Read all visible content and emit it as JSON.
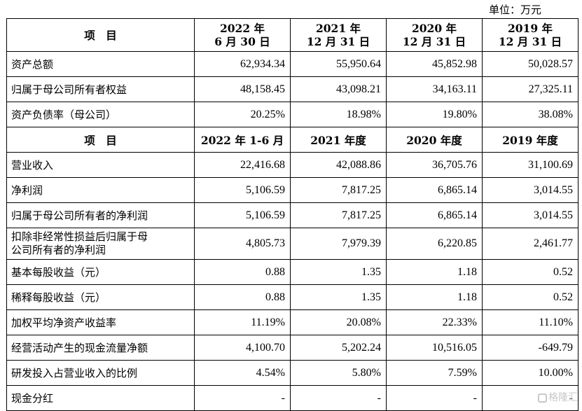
{
  "unit": "单位：万元",
  "table": {
    "header1": {
      "label": "项　目",
      "cols": [
        [
          "2022 年",
          "6 月 30 日"
        ],
        [
          "2021 年",
          "12 月 31 日"
        ],
        [
          "2020 年",
          "12 月 31 日"
        ],
        [
          "2019 年",
          "12 月 31 日"
        ]
      ]
    },
    "balance_rows": [
      {
        "label": "资产总额",
        "values": [
          "62,934.34",
          "55,950.64",
          "45,852.98",
          "50,028.57"
        ]
      },
      {
        "label": "归属于母公司所有者权益",
        "values": [
          "48,158.45",
          "43,098.21",
          "34,163.11",
          "27,325.11"
        ]
      },
      {
        "label": "资产负债率（母公司）",
        "values": [
          "20.25%",
          "18.98%",
          "19.80%",
          "38.08%"
        ]
      }
    ],
    "header2": {
      "label": "项　目",
      "cols": [
        "2022 年 1-6 月",
        "2021 年度",
        "2020 年度",
        "2019 年度"
      ]
    },
    "income_rows": [
      {
        "label": "营业收入",
        "values": [
          "22,416.68",
          "42,088.86",
          "36,705.76",
          "31,100.69"
        ]
      },
      {
        "label": "净利润",
        "values": [
          "5,106.59",
          "7,817.25",
          "6,865.14",
          "3,014.55"
        ]
      },
      {
        "label": "归属于母公司所有者的净利润",
        "values": [
          "5,106.59",
          "7,817.25",
          "6,865.14",
          "3,014.55"
        ]
      },
      {
        "label_lines": [
          "扣除非经常性损益后归属于母",
          "公司所有者的净利润"
        ],
        "values": [
          "4,805.73",
          "7,979.39",
          "6,220.85",
          "2,461.77"
        ]
      },
      {
        "label": "基本每股收益（元）",
        "values": [
          "0.88",
          "1.35",
          "1.18",
          "0.52"
        ]
      },
      {
        "label": "稀释每股收益（元）",
        "values": [
          "0.88",
          "1.35",
          "1.18",
          "0.52"
        ]
      },
      {
        "label": "加权平均净资产收益率",
        "values": [
          "11.19%",
          "20.08%",
          "22.33%",
          "11.10%"
        ]
      },
      {
        "label": "经营活动产生的现金流量净额",
        "values": [
          "4,100.70",
          "5,202.24",
          "10,516.05",
          "-649.79"
        ]
      },
      {
        "label": "研发投入占营业收入的比例",
        "values": [
          "4.54%",
          "5.80%",
          "7.59%",
          "10.00%"
        ]
      },
      {
        "label": "现金分红",
        "values": [
          "-",
          "-",
          "-",
          "-"
        ]
      }
    ]
  },
  "watermark": {
    "text": "格隆汇",
    "icon": "brand-logo-icon"
  }
}
